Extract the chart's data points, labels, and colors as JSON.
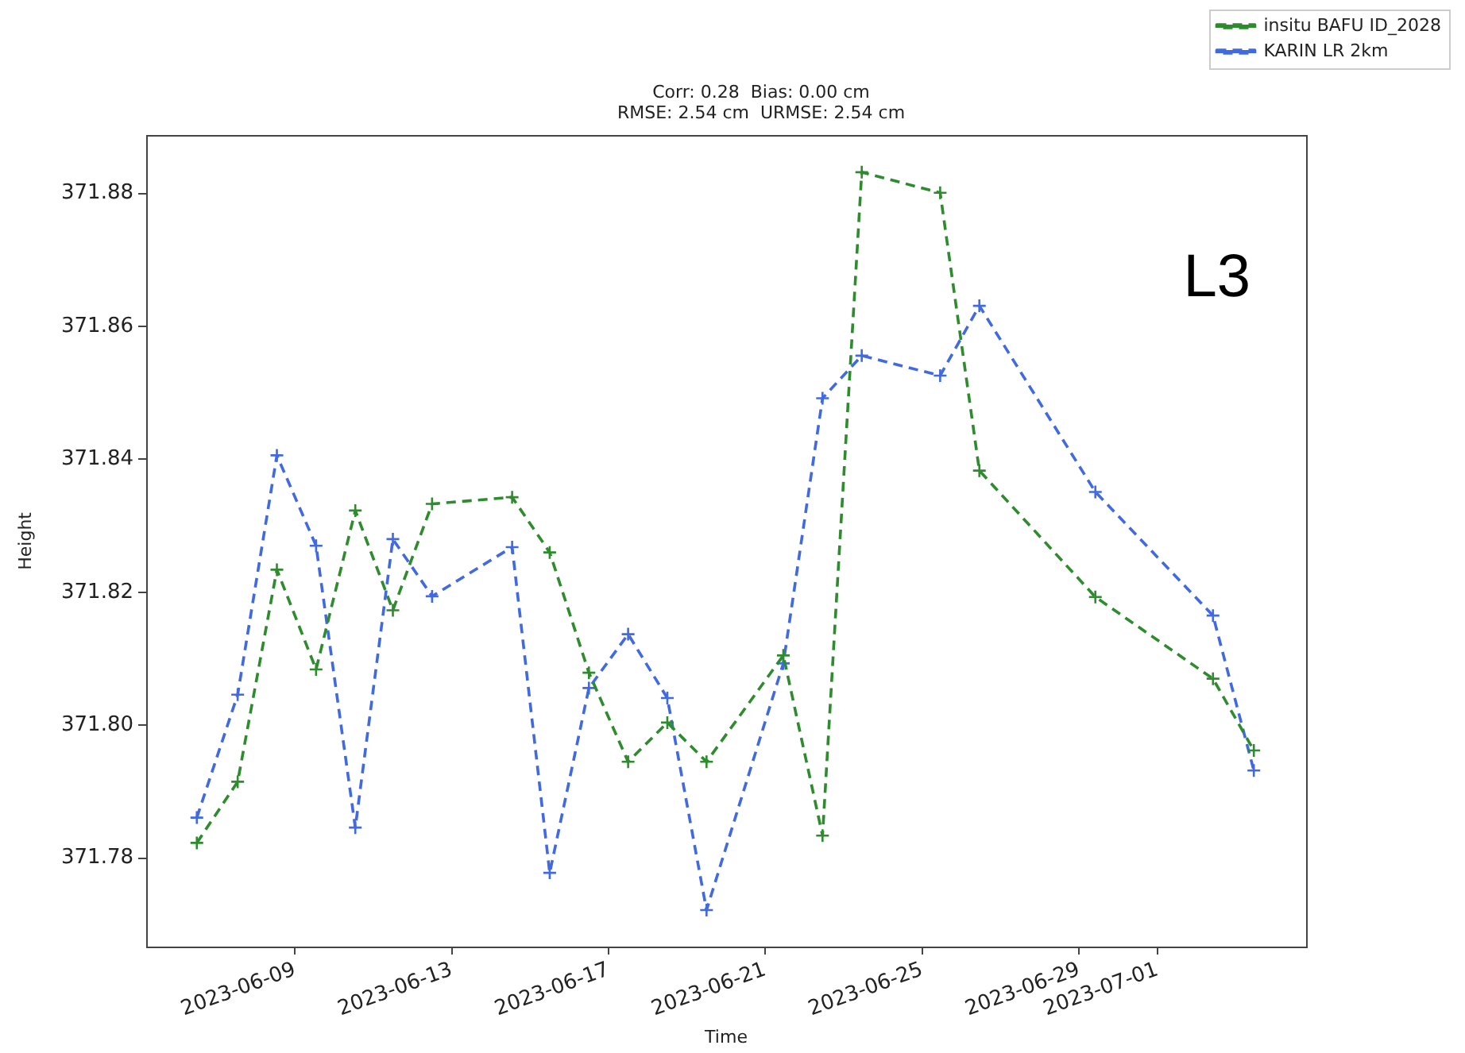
{
  "chart_data": {
    "type": "line",
    "title": "Corr: 0.28  Bias: 0.00 cm\nRMSE: 2.54 cm  URMSE: 2.54 cm",
    "xlabel": "Time",
    "ylabel": "Height",
    "x": [
      "2023-06-06T12:00",
      "2023-06-07T13:00",
      "2023-06-08T13:00",
      "2023-06-09T13:00",
      "2023-06-10T13:00",
      "2023-06-11T12:00",
      "2023-06-12T12:00",
      "2023-06-14T13:00",
      "2023-06-15T12:00",
      "2023-06-16T12:00",
      "2023-06-17T12:00",
      "2023-06-18T12:00",
      "2023-06-19T12:00",
      "2023-06-21T11:00",
      "2023-06-22T11:00",
      "2023-06-23T11:00",
      "2023-06-25T11:00",
      "2023-06-26T11:00",
      "2023-06-29T10:00",
      "2023-07-02T10:00",
      "2023-07-03T11:00"
    ],
    "series": [
      {
        "name": "insitu BAFU ID_2028",
        "color": "#2e8b2e",
        "values": [
          371.7823,
          371.7915,
          371.8234,
          371.8084,
          371.8323,
          371.8173,
          371.8333,
          371.8343,
          371.826,
          371.8079,
          371.7945,
          371.8004,
          371.7945,
          371.8105,
          371.7834,
          371.8832,
          371.8801,
          371.8383,
          371.8193,
          371.807,
          371.7962
        ]
      },
      {
        "name": "KARIN LR 2km",
        "color": "#4169e1",
        "values": [
          371.7861,
          371.8046,
          371.8406,
          371.827,
          371.7846,
          371.828,
          371.8194,
          371.8268,
          371.7778,
          371.8056,
          371.8137,
          371.8041,
          371.7722,
          371.8093,
          371.8492,
          371.8556,
          371.8526,
          371.8631,
          371.8351,
          371.8165,
          371.7932
        ]
      }
    ],
    "xlim": [
      "2023-06-05T05:00",
      "2023-07-04T19:00"
    ],
    "ylim": [
      371.7667,
      371.8887
    ],
    "xticks": [
      "2023-06-09",
      "2023-06-13",
      "2023-06-17",
      "2023-06-21",
      "2023-06-25",
      "2023-06-29",
      "2023-07-01"
    ],
    "yticks": [
      371.78,
      {
        "value": 371.8,
        "label": "371.80"
      },
      371.82,
      371.84,
      371.86,
      371.88
    ],
    "legend": "top right",
    "marker": "cross",
    "line_style": "dashed",
    "annotations": [
      "L3"
    ]
  }
}
